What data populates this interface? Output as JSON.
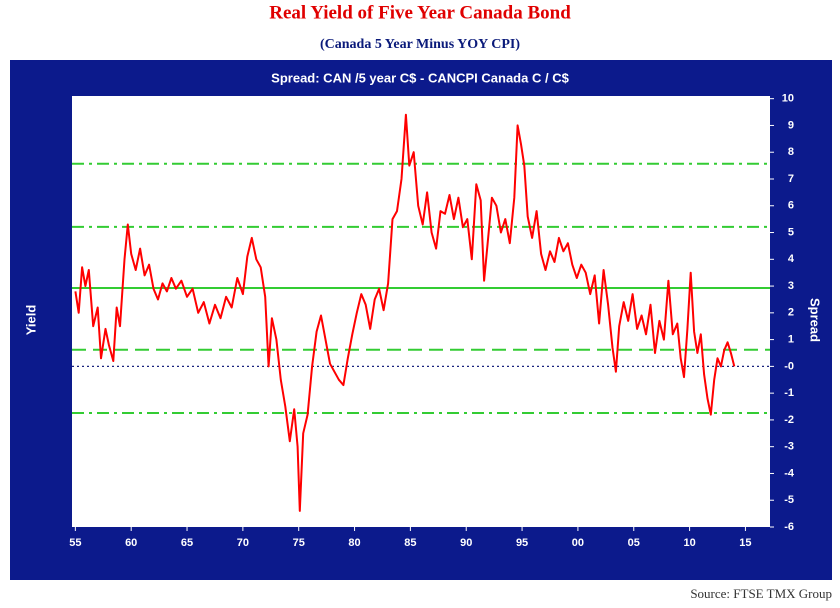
{
  "chart_data": {
    "type": "line",
    "title": "Real Yield of Five Year Canada Bond",
    "subtitle": "(Canada 5 Year Minus YOY CPI)",
    "panel_title": "Spread: CAN /5 year C$  -  CANCPI Canada C / C$",
    "y_label_left": "Yield",
    "y_label_right": "Spread",
    "source": "Source:  FTSE TMX Group",
    "xlim": [
      1954.7,
      2017.2
    ],
    "xticks": [
      {
        "value": 1955,
        "label": "55"
      },
      {
        "value": 1960,
        "label": "60"
      },
      {
        "value": 1965,
        "label": "65"
      },
      {
        "value": 1970,
        "label": "70"
      },
      {
        "value": 1975,
        "label": "75"
      },
      {
        "value": 1980,
        "label": "80"
      },
      {
        "value": 1985,
        "label": "85"
      },
      {
        "value": 1990,
        "label": "90"
      },
      {
        "value": 1995,
        "label": "95"
      },
      {
        "value": 2000,
        "label": "00"
      },
      {
        "value": 2005,
        "label": "05"
      },
      {
        "value": 2010,
        "label": "10"
      },
      {
        "value": 2015,
        "label": "15"
      }
    ],
    "ylim": [
      -6,
      10.1
    ],
    "yticks": [
      -6,
      -5,
      -4,
      -3,
      -2,
      -1,
      {
        "value": 0,
        "label": "-0"
      },
      1,
      2,
      3,
      4,
      5,
      6,
      7,
      8,
      9,
      10
    ],
    "zero_line_color": "#1a237e",
    "reference_lines": [
      {
        "value": 7.57,
        "style": "dashdot",
        "color": "#33cc33"
      },
      {
        "value": 5.21,
        "style": "dashdot",
        "color": "#33cc33"
      },
      {
        "value": 2.93,
        "style": "solid",
        "color": "#33cc33"
      },
      {
        "value": 0.62,
        "style": "dashed",
        "color": "#33cc33"
      },
      {
        "value": -1.74,
        "style": "dashdot",
        "color": "#33cc33"
      }
    ],
    "x": [
      1955.0,
      1955.3,
      1955.6,
      1955.9,
      1956.2,
      1956.6,
      1957.0,
      1957.3,
      1957.7,
      1958.0,
      1958.4,
      1958.7,
      1959.0,
      1959.4,
      1959.7,
      1960.0,
      1960.4,
      1960.8,
      1961.2,
      1961.6,
      1962.0,
      1962.4,
      1962.8,
      1963.2,
      1963.6,
      1964.0,
      1964.5,
      1965.0,
      1965.5,
      1966.0,
      1966.5,
      1967.0,
      1967.5,
      1968.0,
      1968.5,
      1969.0,
      1969.5,
      1970.0,
      1970.4,
      1970.8,
      1971.2,
      1971.6,
      1972.0,
      1972.3,
      1972.6,
      1973.0,
      1973.4,
      1973.8,
      1974.2,
      1974.6,
      1974.9,
      1975.1,
      1975.4,
      1975.8,
      1976.2,
      1976.6,
      1977.0,
      1977.4,
      1977.8,
      1978.2,
      1978.6,
      1979.0,
      1979.4,
      1979.8,
      1980.2,
      1980.6,
      1981.0,
      1981.4,
      1981.8,
      1982.2,
      1982.6,
      1983.0,
      1983.4,
      1983.8,
      1984.2,
      1984.6,
      1984.9,
      1985.3,
      1985.7,
      1986.1,
      1986.5,
      1986.9,
      1987.3,
      1987.7,
      1988.1,
      1988.5,
      1988.9,
      1989.3,
      1989.7,
      1990.1,
      1990.5,
      1990.9,
      1991.3,
      1991.6,
      1991.9,
      1992.3,
      1992.7,
      1993.1,
      1993.5,
      1993.9,
      1994.3,
      1994.6,
      1994.9,
      1995.2,
      1995.5,
      1995.9,
      1996.3,
      1996.7,
      1997.1,
      1997.5,
      1997.9,
      1998.3,
      1998.7,
      1999.1,
      1999.5,
      1999.9,
      2000.3,
      2000.7,
      2001.1,
      2001.5,
      2001.9,
      2002.3,
      2002.7,
      2003.1,
      2003.4,
      2003.7,
      2004.1,
      2004.5,
      2004.9,
      2005.3,
      2005.7,
      2006.1,
      2006.5,
      2006.9,
      2007.3,
      2007.7,
      2008.1,
      2008.5,
      2008.9,
      2009.2,
      2009.5,
      2009.8,
      2010.1,
      2010.4,
      2010.7,
      2011.0,
      2011.3,
      2011.6,
      2011.9,
      2012.2,
      2012.5,
      2012.8,
      2013.1,
      2013.4,
      2013.7,
      2014.0
    ],
    "series": [
      {
        "name": "Spread",
        "color": "#ff0000",
        "values": [
          2.8,
          2.0,
          3.7,
          3.0,
          3.6,
          1.5,
          2.2,
          0.3,
          1.4,
          0.8,
          0.2,
          2.2,
          1.5,
          4.0,
          5.3,
          4.2,
          3.6,
          4.4,
          3.4,
          3.8,
          2.9,
          2.5,
          3.1,
          2.8,
          3.3,
          2.9,
          3.2,
          2.6,
          2.9,
          2.0,
          2.4,
          1.6,
          2.3,
          1.8,
          2.6,
          2.2,
          3.3,
          2.7,
          4.1,
          4.8,
          4.0,
          3.7,
          2.6,
          0.0,
          1.8,
          1.0,
          -0.5,
          -1.5,
          -2.8,
          -1.6,
          -3.0,
          -5.4,
          -2.5,
          -1.8,
          0.0,
          1.3,
          1.9,
          1.0,
          0.1,
          -0.2,
          -0.5,
          -0.7,
          0.3,
          1.2,
          2.0,
          2.7,
          2.3,
          1.4,
          2.5,
          2.9,
          2.1,
          3.1,
          5.5,
          5.8,
          7.0,
          9.4,
          7.5,
          8.0,
          6.0,
          5.3,
          6.5,
          5.0,
          4.4,
          5.8,
          5.7,
          6.4,
          5.5,
          6.3,
          5.2,
          5.5,
          4.0,
          6.8,
          6.2,
          3.2,
          4.5,
          6.3,
          6.0,
          5.0,
          5.5,
          4.6,
          6.3,
          9.0,
          8.3,
          7.5,
          5.6,
          4.8,
          5.8,
          4.2,
          3.6,
          4.3,
          3.9,
          4.8,
          4.3,
          4.6,
          3.8,
          3.3,
          3.8,
          3.5,
          2.7,
          3.4,
          1.6,
          3.6,
          2.3,
          0.7,
          -0.2,
          1.5,
          2.4,
          1.7,
          2.7,
          1.4,
          1.9,
          1.2,
          2.3,
          0.5,
          1.7,
          1.0,
          3.2,
          1.2,
          1.6,
          0.3,
          -0.4,
          1.4,
          3.5,
          1.3,
          0.5,
          1.2,
          -0.3,
          -1.2,
          -1.8,
          -0.5,
          0.3,
          0.0,
          0.6,
          0.9,
          0.5,
          0.0
        ]
      }
    ]
  }
}
